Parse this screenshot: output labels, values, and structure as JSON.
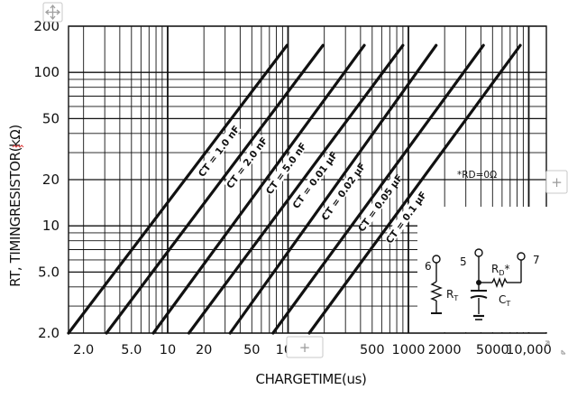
{
  "chart_data": {
    "type": "line",
    "xlabel": "CHARGETIME(us)",
    "ylabel": "RT, TIMINGRESISTOR(kΩ)",
    "x_scale": "log",
    "y_scale": "log",
    "xlim": [
      1.5,
      14000
    ],
    "ylim": [
      2,
      200
    ],
    "x_tick_labels": [
      "2.0",
      "5.0",
      "10",
      "20",
      "50",
      "100",
      "500",
      "1000",
      "2000",
      "5000",
      "10,000"
    ],
    "x_tick_values": [
      2,
      5,
      10,
      20,
      50,
      100,
      500,
      1000,
      2000,
      5000,
      10000
    ],
    "y_tick_labels": [
      "2.0",
      "5.0",
      "10",
      "20",
      "50",
      "100",
      "200"
    ],
    "y_tick_values": [
      2,
      5,
      10,
      20,
      50,
      100,
      200
    ],
    "grid": true,
    "series": [
      {
        "name": "CT = 1.0 nF",
        "points": [
          [
            1.5,
            2
          ],
          [
            98,
            150
          ]
        ]
      },
      {
        "name": "CT = 2.0 nF",
        "points": [
          [
            3.1,
            2
          ],
          [
            195,
            150
          ]
        ]
      },
      {
        "name": "CT = 5.0 nF",
        "points": [
          [
            7.6,
            2
          ],
          [
            430,
            150
          ]
        ]
      },
      {
        "name": "CT = 0.01 μF",
        "points": [
          [
            15,
            2
          ],
          [
            900,
            150
          ]
        ]
      },
      {
        "name": "CT = 0.02 μF",
        "points": [
          [
            33,
            2
          ],
          [
            1700,
            150
          ]
        ]
      },
      {
        "name": "CT = 0.05 μF",
        "points": [
          [
            75,
            2
          ],
          [
            4200,
            150
          ]
        ]
      },
      {
        "name": "CT = 0.1 μF",
        "points": [
          [
            150,
            2
          ],
          [
            8500,
            150
          ]
        ]
      }
    ],
    "annotations": {
      "rd_note": "*RD=0Ω"
    },
    "inset": {
      "pin6": "6",
      "pin5": "5",
      "pin7": "7",
      "rt_label": "RT",
      "ct_label": "CT",
      "rd_label": "RD*"
    }
  },
  "ui": {
    "move_handle_icon": "move-icon",
    "plus_glyph": "+",
    "resize_icon": "resize-diagonal-icon"
  }
}
